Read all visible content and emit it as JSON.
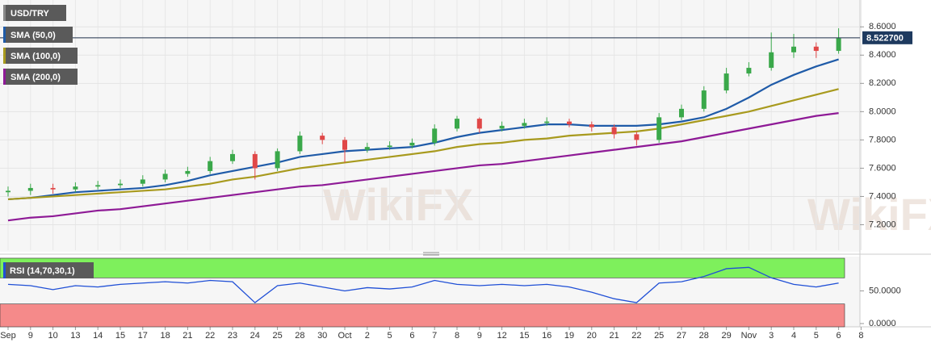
{
  "chart_data": [
    {
      "type": "candlestick",
      "title": "USD/TRY",
      "watermark": "WikiFX",
      "categories": [
        "Sep",
        "9",
        "10",
        "13",
        "14",
        "15",
        "17",
        "18",
        "21",
        "22",
        "23",
        "24",
        "25",
        "28",
        "30",
        "Oct",
        "2",
        "5",
        "6",
        "7",
        "8",
        "9",
        "12",
        "15",
        "16",
        "19",
        "20",
        "21",
        "22",
        "25",
        "27",
        "28",
        "29",
        "Nov",
        "3",
        "4",
        "5",
        "6",
        "8"
      ],
      "open": [
        7.43,
        7.44,
        7.46,
        7.45,
        7.47,
        7.48,
        7.49,
        7.52,
        7.56,
        7.58,
        7.65,
        7.7,
        7.6,
        7.72,
        7.83,
        7.8,
        7.73,
        7.75,
        7.76,
        7.78,
        7.88,
        7.95,
        7.88,
        7.9,
        7.92,
        7.93,
        7.91,
        7.89,
        7.84,
        7.8,
        7.96,
        8.02,
        8.15,
        8.27,
        8.31,
        8.42,
        8.46,
        8.43,
        null
      ],
      "high": [
        7.47,
        7.49,
        7.49,
        7.5,
        7.51,
        7.52,
        7.55,
        7.59,
        7.61,
        7.68,
        7.73,
        7.72,
        7.74,
        7.86,
        7.85,
        7.82,
        7.78,
        7.79,
        7.81,
        7.91,
        7.97,
        7.96,
        7.93,
        7.95,
        7.96,
        7.95,
        7.93,
        7.91,
        7.86,
        7.99,
        8.05,
        8.18,
        8.31,
        8.35,
        8.56,
        8.55,
        8.49,
        8.59,
        null
      ],
      "low": [
        7.4,
        7.41,
        7.42,
        7.43,
        7.45,
        7.46,
        7.47,
        7.5,
        7.54,
        7.56,
        7.63,
        7.52,
        7.58,
        7.7,
        7.77,
        7.64,
        7.71,
        7.73,
        7.74,
        7.76,
        7.86,
        7.85,
        7.86,
        7.88,
        7.9,
        7.89,
        7.86,
        7.81,
        7.76,
        7.78,
        7.94,
        8.0,
        8.13,
        8.25,
        8.29,
        8.38,
        8.38,
        8.41,
        null
      ],
      "close": [
        7.44,
        7.46,
        7.45,
        7.47,
        7.48,
        7.49,
        7.52,
        7.56,
        7.58,
        7.65,
        7.7,
        7.6,
        7.72,
        7.83,
        7.8,
        7.73,
        7.75,
        7.76,
        7.78,
        7.88,
        7.95,
        7.88,
        7.9,
        7.92,
        7.93,
        7.91,
        7.89,
        7.84,
        7.8,
        7.96,
        8.02,
        8.15,
        8.27,
        8.31,
        8.42,
        8.46,
        8.43,
        8.52,
        null
      ],
      "up_color": "#3aa84a",
      "down_color": "#e04848",
      "series": [
        {
          "name": "SMA (50,0)",
          "color": "#1f5ba8",
          "values": [
            7.38,
            7.39,
            7.41,
            7.43,
            7.44,
            7.45,
            7.46,
            7.48,
            7.51,
            7.55,
            7.58,
            7.61,
            7.64,
            7.68,
            7.7,
            7.72,
            7.73,
            7.74,
            7.75,
            7.78,
            7.82,
            7.85,
            7.87,
            7.89,
            7.91,
            7.91,
            7.9,
            7.9,
            7.9,
            7.91,
            7.93,
            7.96,
            8.02,
            8.1,
            8.19,
            8.26,
            8.32,
            8.37,
            null
          ]
        },
        {
          "name": "SMA (100,0)",
          "color": "#a89a1e",
          "values": [
            7.38,
            7.39,
            7.4,
            7.41,
            7.42,
            7.43,
            7.44,
            7.45,
            7.47,
            7.49,
            7.52,
            7.54,
            7.57,
            7.6,
            7.62,
            7.64,
            7.66,
            7.68,
            7.7,
            7.72,
            7.75,
            7.77,
            7.78,
            7.8,
            7.81,
            7.83,
            7.84,
            7.85,
            7.86,
            7.88,
            7.91,
            7.94,
            7.97,
            8.0,
            8.04,
            8.08,
            8.12,
            8.16,
            null
          ]
        },
        {
          "name": "SMA (200,0)",
          "color": "#8e1a96",
          "values": [
            7.23,
            7.25,
            7.26,
            7.28,
            7.3,
            7.31,
            7.33,
            7.35,
            7.37,
            7.39,
            7.41,
            7.43,
            7.45,
            7.47,
            7.48,
            7.5,
            7.52,
            7.54,
            7.56,
            7.58,
            7.6,
            7.62,
            7.63,
            7.65,
            7.67,
            7.69,
            7.71,
            7.73,
            7.75,
            7.77,
            7.79,
            7.82,
            7.85,
            7.88,
            7.91,
            7.94,
            7.97,
            7.99,
            null
          ]
        }
      ],
      "current": {
        "value": 8.5227,
        "label": "8.522700"
      },
      "ylim": [
        7.02,
        8.79
      ],
      "yticks": [
        {
          "value": 8.6,
          "label": "8.6000"
        },
        {
          "value": 8.4,
          "label": "8.4000"
        },
        {
          "value": 8.2,
          "label": "8.2000"
        },
        {
          "value": 8.0,
          "label": "8.0000"
        },
        {
          "value": 7.8,
          "label": "7.8000"
        },
        {
          "value": 7.6,
          "label": "7.6000"
        },
        {
          "value": 7.4,
          "label": "7.4000"
        },
        {
          "value": 7.2,
          "label": "7.2000"
        }
      ],
      "grid": true
    },
    {
      "type": "line",
      "title": "RSI (14,70,30,1)",
      "color": "#1f4fd6",
      "values": [
        60,
        58,
        52,
        58,
        56,
        60,
        62,
        64,
        62,
        66,
        64,
        32,
        58,
        62,
        56,
        50,
        55,
        53,
        56,
        66,
        60,
        58,
        60,
        58,
        60,
        56,
        48,
        38,
        32,
        62,
        64,
        72,
        84,
        86,
        70,
        60,
        56,
        62,
        null
      ],
      "overbought": 70,
      "oversold": 30,
      "overbought_color": "#7ef05c",
      "oversold_color": "#f58a8a",
      "ylim": [
        -5,
        100
      ],
      "yticks": [
        {
          "value": 50,
          "label": "50.0000"
        },
        {
          "value": 0,
          "label": "0.0000"
        }
      ]
    }
  ]
}
